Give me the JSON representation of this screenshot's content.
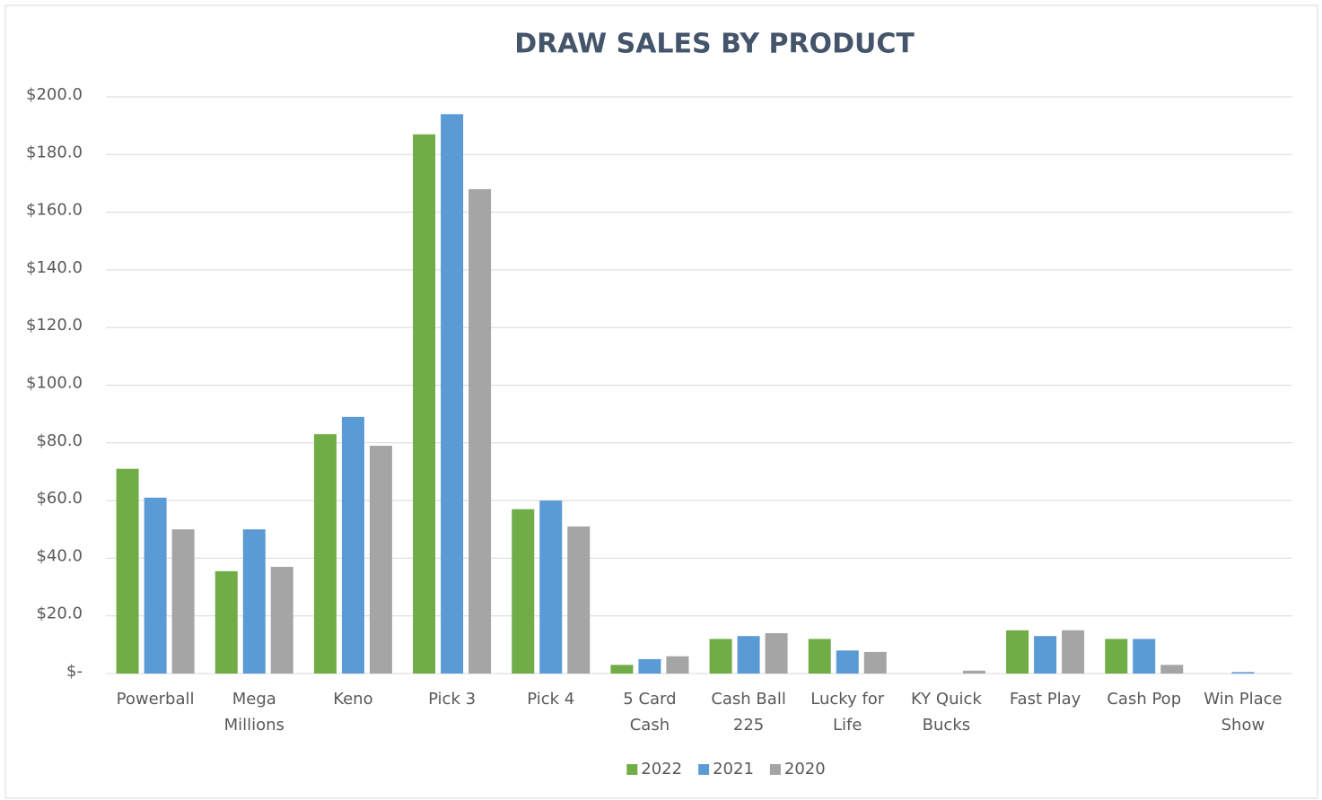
{
  "chart_data": {
    "type": "bar",
    "title": "DRAW SALES BY PRODUCT",
    "categories": [
      "Powerball",
      "Mega Millions",
      "Keno",
      "Pick 3",
      "Pick 4",
      "5 Card Cash",
      "Cash Ball 225",
      "Lucky for Life",
      "KY Quick Bucks",
      "Fast Play",
      "Cash Pop",
      "Win Place Show"
    ],
    "series": [
      {
        "name": "2022",
        "color": "#70ad47",
        "values": [
          71,
          35.5,
          83,
          187,
          57,
          3,
          12,
          12,
          0,
          15,
          12,
          0
        ]
      },
      {
        "name": "2021",
        "color": "#5b9bd5",
        "values": [
          61,
          50,
          89,
          194,
          60,
          5,
          13,
          8,
          0,
          13,
          12,
          0.5
        ]
      },
      {
        "name": "2020",
        "color": "#a5a5a5",
        "values": [
          50,
          37,
          79,
          168,
          51,
          6,
          14,
          7.5,
          1,
          15,
          3,
          0
        ]
      }
    ],
    "ylim": [
      0,
      200
    ],
    "yticks": [
      {
        "value": 0,
        "label": "$-"
      },
      {
        "value": 20,
        "label": "$20.0"
      },
      {
        "value": 40,
        "label": "$40.0"
      },
      {
        "value": 60,
        "label": "$60.0"
      },
      {
        "value": 80,
        "label": "$80.0"
      },
      {
        "value": 100,
        "label": "$100.0"
      },
      {
        "value": 120,
        "label": "$120.0"
      },
      {
        "value": 140,
        "label": "$140.0"
      },
      {
        "value": 160,
        "label": "$160.0"
      },
      {
        "value": 180,
        "label": "$180.0"
      },
      {
        "value": 200,
        "label": "$200.0"
      }
    ],
    "grid": true,
    "legend": "bottom"
  }
}
